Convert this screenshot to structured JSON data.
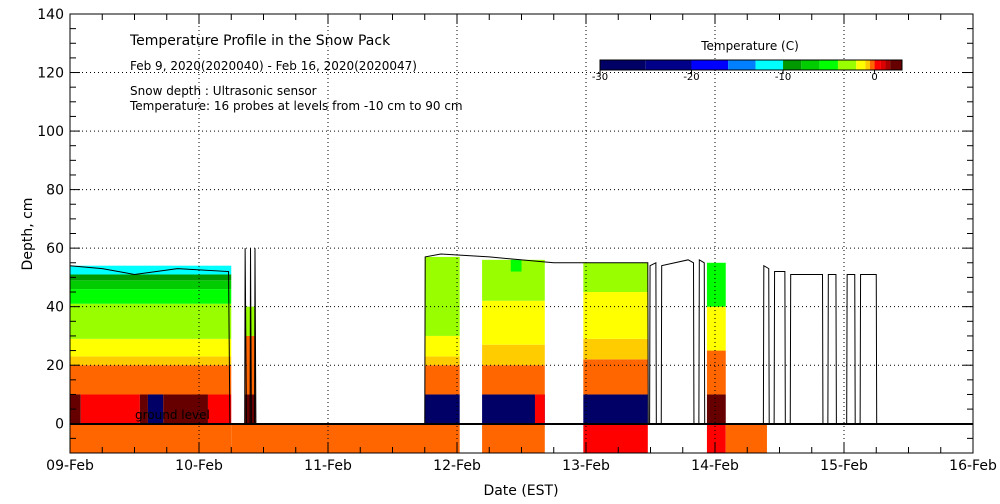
{
  "chart_data": {
    "type": "heatmap",
    "title": "Temperature Profile in the Snow Pack",
    "subtitle": "Feb  9, 2020(2020040) - Feb 16, 2020(2020047)",
    "notes": [
      "Snow depth : Ultrasonic sensor",
      "Temperature: 16 probes at levels from -10 cm to 90 cm"
    ],
    "xlabel": "Date (EST)",
    "ylabel": "Depth, cm",
    "xlim": [
      "2020-02-09 00:00",
      "2020-02-16 00:00"
    ],
    "ylim": [
      -10,
      140
    ],
    "x_tick_labels": [
      "09-Feb",
      "10-Feb",
      "11-Feb",
      "12-Feb",
      "13-Feb",
      "14-Feb",
      "15-Feb",
      "16-Feb"
    ],
    "y_ticks": [
      0,
      20,
      40,
      60,
      80,
      100,
      120,
      140
    ],
    "grid": true,
    "ground_label": "ground level",
    "colorbar": {
      "title": "Temperature (C)",
      "range": [
        -30,
        3
      ],
      "ticks": [
        -30,
        -20,
        -10,
        0
      ],
      "bins": [
        {
          "from": -30,
          "color": "#000066"
        },
        {
          "from": -25,
          "color": "#000088"
        },
        {
          "from": -20,
          "color": "#0000ff"
        },
        {
          "from": -16,
          "color": "#0080ff"
        },
        {
          "from": -13,
          "color": "#00ffff"
        },
        {
          "from": -10,
          "color": "#009900"
        },
        {
          "from": -8,
          "color": "#00cc00"
        },
        {
          "from": -6,
          "color": "#00ff00"
        },
        {
          "from": -4,
          "color": "#99ff00"
        },
        {
          "from": -2,
          "color": "#ffff00"
        },
        {
          "from": -1,
          "color": "#ffcc00"
        },
        {
          "from": -0.5,
          "color": "#ff6600"
        },
        {
          "from": 0,
          "color": "#ff0000"
        },
        {
          "from": 0.7,
          "color": "#dd0000"
        },
        {
          "from": 1.2,
          "color": "#aa0000"
        },
        {
          "from": 1.7,
          "color": "#660000"
        }
      ]
    },
    "temperature_segments": [
      {
        "start": "2020-02-09 00:00",
        "end": "2020-02-10 06:00",
        "layers": [
          [
            -10,
            0,
            -0.3
          ],
          [
            10,
            20,
            -0.3
          ],
          [
            20,
            23,
            -0.8
          ],
          [
            23,
            29,
            -1.5
          ],
          [
            29,
            41,
            -3
          ],
          [
            41,
            46,
            -5
          ],
          [
            46,
            49,
            -7
          ],
          [
            49,
            51,
            -9
          ],
          [
            51,
            54,
            -12
          ]
        ]
      },
      {
        "start": "2020-02-09 00:00",
        "end": "2020-02-09 02:00",
        "layers": [
          [
            0,
            10,
            1.8
          ]
        ]
      },
      {
        "start": "2020-02-09 02:00",
        "end": "2020-02-09 13:00",
        "layers": [
          [
            0,
            10,
            0.3
          ]
        ]
      },
      {
        "start": "2020-02-09 13:00",
        "end": "2020-02-09 14:30",
        "layers": [
          [
            0,
            10,
            1.8
          ]
        ]
      },
      {
        "start": "2020-02-09 14:30",
        "end": "2020-02-09 17:20",
        "layers": [
          [
            0,
            10,
            -28
          ]
        ]
      },
      {
        "start": "2020-02-09 17:20",
        "end": "2020-02-10 01:40",
        "layers": [
          [
            0,
            10,
            1.8
          ]
        ]
      },
      {
        "start": "2020-02-10 01:40",
        "end": "2020-02-10 06:00",
        "layers": [
          [
            0,
            10,
            0.3
          ]
        ]
      },
      {
        "start": "2020-02-10 06:00",
        "end": "2020-02-12 00:30",
        "layers": [
          [
            -10,
            0,
            -0.3
          ]
        ]
      },
      {
        "start": "2020-02-10 08:30",
        "end": "2020-02-10 10:30",
        "layers": [
          [
            0,
            10,
            1.8
          ],
          [
            10,
            30,
            -0.3
          ],
          [
            30,
            40,
            -3
          ]
        ]
      },
      {
        "start": "2020-02-11 18:00",
        "end": "2020-02-12 00:30",
        "layers": [
          [
            0,
            10,
            -28
          ],
          [
            10,
            20,
            -0.3
          ],
          [
            20,
            23,
            -0.8
          ],
          [
            23,
            30,
            -1.5
          ],
          [
            30,
            57,
            -3
          ]
        ]
      },
      {
        "start": "2020-02-12 04:40",
        "end": "2020-02-12 16:20",
        "layers": [
          [
            -10,
            0,
            -0.3
          ],
          [
            0,
            10,
            -28
          ],
          [
            10,
            20,
            -0.3
          ],
          [
            20,
            27,
            -0.8
          ],
          [
            27,
            42,
            -1.5
          ],
          [
            42,
            56,
            -3
          ]
        ]
      },
      {
        "start": "2020-02-12 10:00",
        "end": "2020-02-12 12:00",
        "layers": [
          [
            52,
            56,
            -5
          ]
        ]
      },
      {
        "start": "2020-02-12 14:30",
        "end": "2020-02-12 16:20",
        "layers": [
          [
            0,
            10,
            0.3
          ]
        ]
      },
      {
        "start": "2020-02-12 23:30",
        "end": "2020-02-13 11:30",
        "layers": [
          [
            -10,
            0,
            0.3
          ],
          [
            0,
            10,
            -28
          ],
          [
            10,
            22,
            -0.3
          ],
          [
            22,
            29,
            -0.8
          ],
          [
            29,
            45,
            -1.5
          ],
          [
            45,
            55,
            -3
          ]
        ]
      },
      {
        "start": "2020-02-13 22:30",
        "end": "2020-02-14 02:00",
        "layers": [
          [
            -10,
            0,
            0.3
          ],
          [
            0,
            10,
            1.8
          ],
          [
            10,
            25,
            -0.3
          ],
          [
            25,
            40,
            -1.5
          ],
          [
            40,
            55,
            -6
          ]
        ]
      },
      {
        "start": "2020-02-14 02:00",
        "end": "2020-02-14 09:40",
        "layers": [
          [
            -10,
            0,
            -0.3
          ]
        ]
      }
    ],
    "snow_depth": [
      [
        "2020-02-09 00:00",
        54
      ],
      [
        "2020-02-09 06:00",
        53
      ],
      [
        "2020-02-09 12:00",
        51
      ],
      [
        "2020-02-09 20:00",
        53
      ],
      [
        "2020-02-10 05:30",
        52
      ],
      [
        "2020-02-10 05:45",
        0
      ],
      [
        "2020-02-10 08:30",
        0
      ],
      [
        "2020-02-10 08:35",
        60
      ],
      [
        "2020-02-10 08:50",
        0
      ],
      [
        "2020-02-10 09:30",
        0
      ],
      [
        "2020-02-10 09:35",
        60
      ],
      [
        "2020-02-10 09:45",
        0
      ],
      [
        "2020-02-10 10:20",
        0
      ],
      [
        "2020-02-10 10:25",
        60
      ],
      [
        "2020-02-10 10:35",
        0
      ],
      [
        "2020-02-11 18:00",
        0
      ],
      [
        "2020-02-11 18:05",
        57
      ],
      [
        "2020-02-11 21:00",
        58
      ],
      [
        "2020-02-12 06:00",
        57
      ],
      [
        "2020-02-12 18:00",
        55
      ],
      [
        "2020-02-13 11:30",
        55
      ],
      [
        "2020-02-13 11:35",
        0
      ],
      [
        "2020-02-13 11:50",
        0
      ],
      [
        "2020-02-13 11:55",
        54
      ],
      [
        "2020-02-13 13:00",
        55
      ],
      [
        "2020-02-13 13:05",
        0
      ],
      [
        "2020-02-13 14:00",
        0
      ],
      [
        "2020-02-13 14:05",
        54
      ],
      [
        "2020-02-13 19:00",
        56
      ],
      [
        "2020-02-13 20:00",
        55
      ],
      [
        "2020-02-13 20:05",
        0
      ],
      [
        "2020-02-13 21:00",
        0
      ],
      [
        "2020-02-13 21:05",
        56
      ],
      [
        "2020-02-13 22:00",
        55
      ],
      [
        "2020-02-13 22:05",
        0
      ],
      [
        "2020-02-14 09:00",
        0
      ],
      [
        "2020-02-14 09:05",
        54
      ],
      [
        "2020-02-14 10:00",
        53
      ],
      [
        "2020-02-14 10:05",
        0
      ],
      [
        "2020-02-14 11:00",
        0
      ],
      [
        "2020-02-14 11:05",
        52
      ],
      [
        "2020-02-14 13:00",
        52
      ],
      [
        "2020-02-14 13:05",
        0
      ],
      [
        "2020-02-14 14:00",
        0
      ],
      [
        "2020-02-14 14:05",
        51
      ],
      [
        "2020-02-14 20:00",
        51
      ],
      [
        "2020-02-14 20:05",
        0
      ],
      [
        "2020-02-14 21:00",
        0
      ],
      [
        "2020-02-14 21:05",
        51
      ],
      [
        "2020-02-14 22:30",
        51
      ],
      [
        "2020-02-14 22:35",
        0
      ],
      [
        "2020-02-15 00:30",
        0
      ],
      [
        "2020-02-15 00:35",
        51
      ],
      [
        "2020-02-15 02:00",
        51
      ],
      [
        "2020-02-15 02:05",
        0
      ],
      [
        "2020-02-15 03:00",
        0
      ],
      [
        "2020-02-15 03:05",
        51
      ],
      [
        "2020-02-15 06:00",
        51
      ],
      [
        "2020-02-15 06:05",
        0
      ]
    ]
  }
}
